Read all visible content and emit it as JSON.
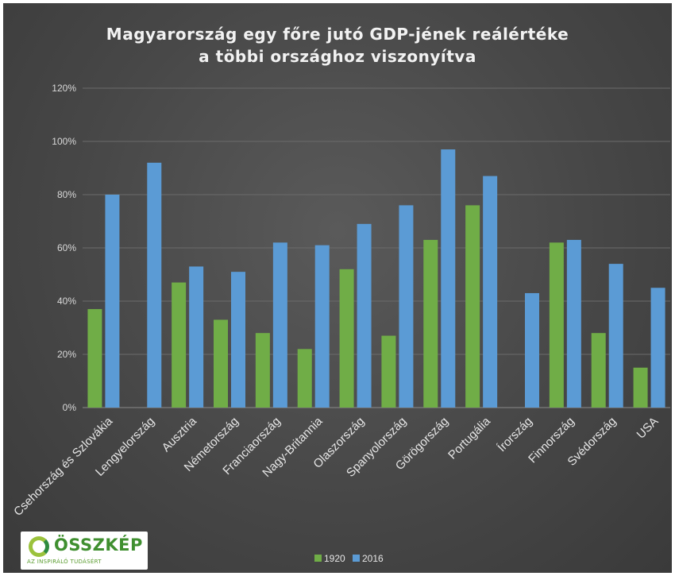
{
  "chart_data": {
    "type": "bar",
    "title": "Magyarország egy főre jutó GDP-jének reálértéke\na többi országhoz viszonyítva",
    "xlabel": "",
    "ylabel": "",
    "ylim": [
      0,
      1.2
    ],
    "yticks": [
      0,
      0.2,
      0.4,
      0.6,
      0.8,
      1.0,
      1.2
    ],
    "ytick_labels": [
      "0%",
      "20%",
      "40%",
      "60%",
      "80%",
      "100%",
      "120%"
    ],
    "grid": true,
    "legend_position": "bottom",
    "categories": [
      "Csehország és Szlovákia",
      "Lengyelország",
      "Ausztria",
      "Németország",
      "Franciaország",
      "Nagy-Britannia",
      "Olaszország",
      "Spanyolország",
      "Görögország",
      "Portugália",
      "Írország",
      "Finnország",
      "Svédország",
      "USA"
    ],
    "series": [
      {
        "name": "1920",
        "color": "#70ad47",
        "values": [
          0.37,
          null,
          0.47,
          0.33,
          0.28,
          0.22,
          0.52,
          0.27,
          0.63,
          0.76,
          null,
          0.62,
          0.28,
          0.15
        ]
      },
      {
        "name": "2016",
        "color": "#5b9bd5",
        "values": [
          0.8,
          0.92,
          0.53,
          0.51,
          0.62,
          0.61,
          0.69,
          0.76,
          0.97,
          0.87,
          0.43,
          0.63,
          0.54,
          0.45
        ]
      }
    ]
  },
  "logo": {
    "name": "ÖSSZKÉP",
    "tagline": "AZ INSPIRÁLÓ TUDÁSÉRT"
  }
}
